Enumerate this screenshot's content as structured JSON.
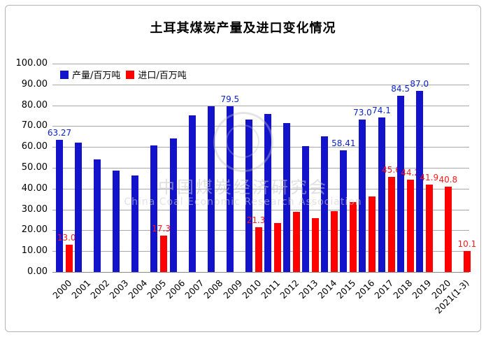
{
  "title": "土耳其煤炭产量及进口变化情况",
  "legend": {
    "items": [
      {
        "label": "产量/百万吨",
        "color": "#1313cb"
      },
      {
        "label": "进口/百万吨",
        "color": "#fe0000"
      }
    ]
  },
  "watermark": {
    "line1": "中国煤炭经济研究会",
    "line2": "China Coal Economic Research Association"
  },
  "chart_data": {
    "type": "bar",
    "title": "土耳其煤炭产量及进口变化情况",
    "categories": [
      "2000",
      "2001",
      "2002",
      "2003",
      "2004",
      "2005",
      "2006",
      "2007",
      "2008",
      "2009",
      "2010",
      "2011",
      "2012",
      "2013",
      "2014",
      "2015",
      "2016",
      "2017",
      "2018",
      "2019",
      "2020",
      "2021(1-3)"
    ],
    "series": [
      {
        "name": "产量/百万吨",
        "color": "#1313cb",
        "label_color": "#0b24cc",
        "values": [
          63.27,
          62.1,
          53.9,
          48.5,
          46.3,
          60.6,
          64.0,
          75.2,
          79.4,
          79.5,
          73.2,
          76.0,
          71.5,
          60.3,
          65.0,
          58.41,
          73.0,
          74.1,
          84.5,
          87.0,
          null,
          null
        ],
        "shown_labels": {
          "0": "63.27",
          "9": "79.5",
          "15": "58.41",
          "16": "73.0",
          "17": "74.1",
          "18": "84.5",
          "19": "87.0"
        }
      },
      {
        "name": "进口/百万吨",
        "color": "#fe0000",
        "label_color": "#ff1a1a",
        "values": [
          13.0,
          null,
          null,
          null,
          null,
          17.36,
          null,
          null,
          null,
          null,
          21.33,
          23.6,
          28.9,
          25.7,
          29.1,
          33.7,
          36.1,
          45.6,
          44.2,
          41.9,
          40.8,
          10.1
        ],
        "shown_labels": {
          "0": "13.00",
          "5": "17.36",
          "10": "21.33",
          "17": "45.6",
          "18": "44.2",
          "19": "41.9",
          "20": "40.8",
          "21": "10.1"
        }
      }
    ],
    "ylim": [
      0,
      100
    ],
    "ytick_step": 10,
    "ytick_labels": [
      "100.00",
      "90.00",
      "80.00",
      "70.00",
      "60.00",
      "50.00",
      "40.00",
      "30.00",
      "20.00",
      "10.00",
      "0.00"
    ],
    "grid": true,
    "legend_position": "top-left-inside"
  }
}
